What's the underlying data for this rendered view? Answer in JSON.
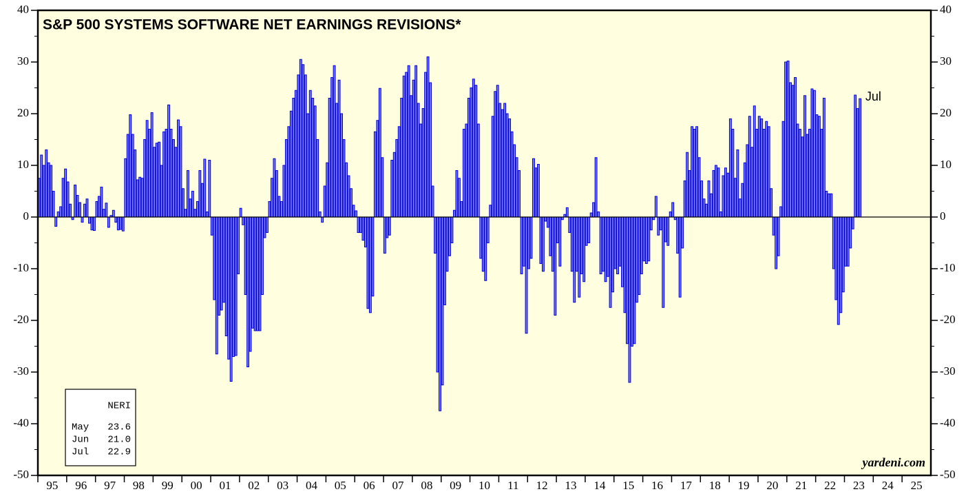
{
  "chart_data": {
    "type": "bar",
    "title": "S&P 500 SYSTEMS SOFTWARE NET EARNINGS REVISIONS*",
    "categories": [
      "95",
      null,
      null,
      null,
      null,
      null,
      null,
      null,
      null,
      null,
      null,
      null,
      "96",
      null,
      null,
      null,
      null,
      null,
      null,
      null,
      null,
      null,
      null,
      null,
      "97",
      null,
      null,
      null,
      null,
      null,
      null,
      null,
      null,
      null,
      null,
      null,
      "98",
      null,
      null,
      null,
      null,
      null,
      null,
      null,
      null,
      null,
      null,
      null,
      "99",
      null,
      null,
      null,
      null,
      null,
      null,
      null,
      null,
      null,
      null,
      null,
      "00",
      null,
      null,
      null,
      null,
      null,
      null,
      null,
      null,
      null,
      null,
      null,
      "01",
      null,
      null,
      null,
      null,
      null,
      null,
      null,
      null,
      null,
      null,
      null,
      "02",
      null,
      null,
      null,
      null,
      null,
      null,
      null,
      null,
      null,
      null,
      null,
      "03",
      null,
      null,
      null,
      null,
      null,
      null,
      null,
      null,
      null,
      null,
      null,
      "04",
      null,
      null,
      null,
      null,
      null,
      null,
      null,
      null,
      null,
      null,
      null,
      "05",
      null,
      null,
      null,
      null,
      null,
      null,
      null,
      null,
      null,
      null,
      null,
      "06",
      null,
      null,
      null,
      null,
      null,
      null,
      null,
      null,
      null,
      null,
      null,
      "07",
      null,
      null,
      null,
      null,
      null,
      null,
      null,
      null,
      null,
      null,
      null,
      "08",
      null,
      null,
      null,
      null,
      null,
      null,
      null,
      null,
      null,
      null,
      null,
      "09",
      null,
      null,
      null,
      null,
      null,
      null,
      null,
      null,
      null,
      null,
      null,
      "10",
      null,
      null,
      null,
      null,
      null,
      null,
      null,
      null,
      null,
      null,
      null,
      "11",
      null,
      null,
      null,
      null,
      null,
      null,
      null,
      null,
      null,
      null,
      null,
      "12",
      null,
      null,
      null,
      null,
      null,
      null,
      null,
      null,
      null,
      null,
      null,
      "13",
      null,
      null,
      null,
      null,
      null,
      null,
      null,
      null,
      null,
      null,
      null,
      "14",
      null,
      null,
      null,
      null,
      null,
      null,
      null,
      null,
      null,
      null,
      null,
      "15",
      null,
      null,
      null,
      null,
      null,
      null,
      null,
      null,
      null,
      null,
      null,
      "16",
      null,
      null,
      null,
      null,
      null,
      null,
      null,
      null,
      null,
      null,
      null,
      "17",
      null,
      null,
      null,
      null,
      null,
      null,
      null,
      null,
      null,
      null,
      null,
      "18",
      null,
      null,
      null,
      null,
      null,
      null,
      null,
      null,
      null,
      null,
      null,
      "19",
      null,
      null,
      null,
      null,
      null,
      null,
      null,
      null,
      null,
      null,
      null,
      "20",
      null,
      null,
      null,
      null,
      null,
      null,
      null,
      null,
      null,
      null,
      null,
      "21",
      null,
      null,
      null,
      null,
      null,
      null,
      null,
      null,
      null,
      null,
      null,
      "22",
      null,
      null,
      null,
      null,
      null,
      null,
      null,
      null,
      null,
      null,
      null,
      "23",
      null,
      null,
      null,
      null,
      null,
      null,
      null,
      null,
      null,
      null,
      null,
      "24",
      null,
      null,
      null,
      null,
      null,
      null,
      null,
      null,
      null,
      null,
      null,
      "25",
      null,
      null,
      null,
      null,
      null,
      null,
      null,
      null,
      null,
      null,
      null
    ],
    "values": [
      7.5,
      12,
      10,
      13,
      10.5,
      10,
      5,
      -1.8,
      1,
      2,
      7.5,
      9.3,
      6.8,
      2.5,
      -0.5,
      6.2,
      4.2,
      2.8,
      -1,
      2.5,
      3.5,
      -1.2,
      -2.5,
      -2.6,
      3,
      4,
      5.8,
      1.5,
      2.7,
      -2,
      0.3,
      1.3,
      -1,
      -2.5,
      -2.4,
      -2.7,
      11.3,
      16,
      19.8,
      16,
      13,
      7.2,
      7.7,
      7.5,
      15,
      18.7,
      17,
      20.2,
      13.5,
      14.3,
      14.5,
      10,
      16.5,
      17,
      21.7,
      17,
      15,
      13.5,
      18.8,
      17.5,
      5.5,
      1.5,
      9,
      3.5,
      5,
      1.5,
      3,
      9,
      6.5,
      11.2,
      1,
      11,
      -3.5,
      -16,
      -26.5,
      -19,
      -18,
      -16.5,
      -23,
      -27.5,
      -31.8,
      -27,
      -26.8,
      -11,
      1.7,
      -1.5,
      -15,
      -29,
      -26,
      -21.5,
      -22,
      -22,
      -22,
      -15,
      -4,
      -3,
      3,
      7.5,
      11.3,
      9,
      4,
      3,
      10,
      15,
      17.5,
      20.5,
      23,
      24.5,
      27.5,
      30.5,
      29.5,
      27.5,
      20,
      24.5,
      23,
      21.5,
      15,
      1,
      -1,
      6,
      10.5,
      23,
      27,
      29.3,
      22,
      26.5,
      20,
      15,
      10.5,
      8,
      5.5,
      2.3,
      1.2,
      -3,
      -3,
      -4.5,
      -5.8,
      -17.7,
      -18.5,
      -15.3,
      16.5,
      18.7,
      24.9,
      11.5,
      -7,
      -4,
      -3.5,
      11,
      12.5,
      15,
      17.5,
      23,
      27.3,
      28,
      29.3,
      23.5,
      26.5,
      29.3,
      22,
      18,
      21,
      28,
      31,
      26,
      6,
      -7,
      -30,
      -37.5,
      -32.5,
      -17,
      -10.5,
      -7.5,
      -5,
      1.3,
      9,
      7.5,
      3,
      17,
      18,
      23,
      25,
      26.7,
      25.5,
      18,
      -8,
      -10.5,
      -12.3,
      -5,
      2.3,
      19.5,
      24.3,
      25.5,
      22,
      20.8,
      22,
      20,
      19,
      16.5,
      14,
      11.5,
      9,
      -11,
      -9.5,
      -22.5,
      -10,
      -8,
      11.3,
      9.5,
      10.2,
      -9,
      -10.5,
      -0.8,
      -2,
      -7.5,
      -10.5,
      -19,
      -5,
      -9.5,
      -0.5,
      0.5,
      1.8,
      -3,
      -10.5,
      -16.5,
      -10.5,
      -15.5,
      -11,
      -12.5,
      -5.5,
      -5,
      0.8,
      2.8,
      11.5,
      1,
      -11,
      -10.5,
      -12.5,
      -11.5,
      -17.5,
      -14.5,
      -10,
      -11,
      -9.5,
      -13.5,
      -18.5,
      -24.5,
      -32,
      -25,
      -24.5,
      -16.5,
      -15,
      -11,
      -8.5,
      -9,
      -8.5,
      -2.5,
      -0.5,
      4,
      -3.5,
      -2.5,
      -17.5,
      -4.8,
      -5.5,
      1,
      2.8,
      -0.5,
      -7,
      -15.5,
      -6,
      7,
      12.5,
      9,
      17.5,
      17,
      17.5,
      11.5,
      7,
      3.5,
      2.5,
      7,
      4.5,
      9,
      10,
      9.5,
      1,
      8,
      9.5,
      8.5,
      19,
      17,
      7.5,
      13,
      3.5,
      6.5,
      10.5,
      14,
      19.5,
      13.5,
      21.5,
      17,
      19.5,
      19,
      17,
      18.5,
      17.5,
      5.5,
      -3.5,
      -10,
      -7.5,
      2,
      18.5,
      30,
      30.2,
      26,
      25.5,
      27,
      18,
      17,
      15.5,
      23.5,
      16,
      17,
      24.8,
      24.5,
      19.8,
      19.5,
      17,
      23,
      5,
      4.5,
      4.5,
      -10,
      -16,
      -20.8,
      -18.5,
      -14.5,
      -9.5,
      -9.5,
      -6,
      -2.3,
      23.6,
      21.0,
      22.9,
      null,
      null,
      null,
      null,
      null,
      null,
      null,
      null,
      null,
      null,
      null,
      null,
      null,
      null,
      null,
      null,
      null,
      null,
      null,
      null,
      null,
      null,
      null,
      null,
      null,
      null,
      null,
      null,
      null
    ],
    "color": "#7676ff",
    "edge_color": "#0000d8",
    "background": "#ffffe0",
    "ylim": [
      -50,
      40
    ],
    "yticks": [
      -50,
      -40,
      -30,
      -20,
      -10,
      0,
      10,
      20,
      30,
      40
    ],
    "zero_line": true,
    "end_label": "Jul",
    "source": "yardeni.com",
    "legend_table": {
      "header": "NERI",
      "rows": [
        [
          "May",
          "23.6"
        ],
        [
          "Jun",
          "21.0"
        ],
        [
          "Jul",
          "22.9"
        ]
      ]
    }
  }
}
